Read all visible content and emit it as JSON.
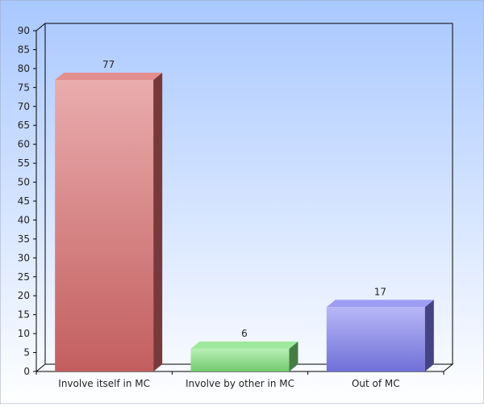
{
  "chart_data": {
    "type": "bar",
    "categories": [
      "Involve itself in MC",
      "Involve by other in MC",
      "Out of MC"
    ],
    "values": [
      77,
      6,
      17
    ],
    "data_labels": [
      "77",
      "6",
      "17"
    ],
    "ylim": [
      0,
      90
    ],
    "yticks": [
      "0",
      "5",
      "10",
      "15",
      "20",
      "25",
      "30",
      "35",
      "40",
      "45",
      "50",
      "55",
      "60",
      "65",
      "70",
      "75",
      "80",
      "85",
      "90"
    ],
    "colors": [
      "#d9686a",
      "#7ee27a",
      "#7c7cf0"
    ],
    "background": "#a9c9ff",
    "grid": false,
    "three_d": true
  }
}
